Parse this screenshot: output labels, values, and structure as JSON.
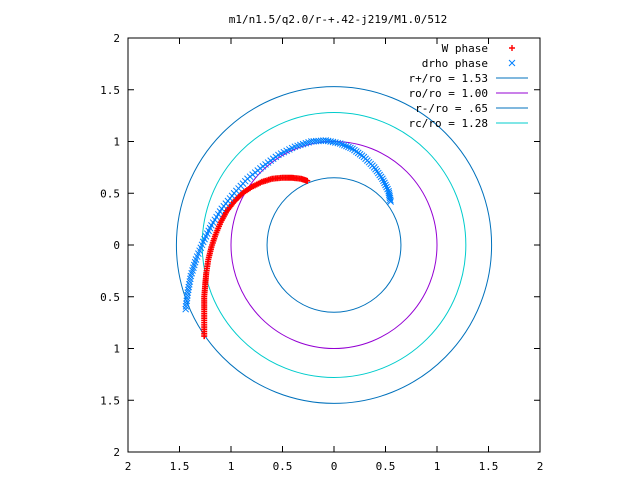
{
  "chart_data": {
    "type": "scatter",
    "title": "m1/n1.5/q2.0/r-+.42-j219/M1.0/512",
    "xlabel": "",
    "ylabel": "",
    "xlim": [
      -2,
      2
    ],
    "ylim": [
      -2,
      2
    ],
    "grid": false,
    "legend_position": "top-right",
    "x_ticks": [
      {
        "value": -2,
        "label": "2"
      },
      {
        "value": -1.5,
        "label": "1.5"
      },
      {
        "value": -1,
        "label": "1"
      },
      {
        "value": -0.5,
        "label": "0.5"
      },
      {
        "value": 0,
        "label": "0"
      },
      {
        "value": 0.5,
        "label": "0.5"
      },
      {
        "value": 1,
        "label": "1"
      },
      {
        "value": 1.5,
        "label": "1.5"
      },
      {
        "value": 2,
        "label": "2"
      }
    ],
    "y_ticks": [
      {
        "value": 2,
        "label": "2"
      },
      {
        "value": 1.5,
        "label": "1.5"
      },
      {
        "value": 1,
        "label": "1"
      },
      {
        "value": 0.5,
        "label": "0.5"
      },
      {
        "value": 0,
        "label": "0"
      },
      {
        "value": -0.5,
        "label": "0.5"
      },
      {
        "value": -1,
        "label": "1"
      },
      {
        "value": -1.5,
        "label": "1.5"
      },
      {
        "value": -2,
        "label": "2"
      }
    ],
    "series": [
      {
        "name": "W phase",
        "kind": "points",
        "marker": "+",
        "color": "#ff0000",
        "x": [
          -1.26,
          -1.26,
          -1.26,
          -1.26,
          -1.25,
          -1.24,
          -1.22,
          -1.19,
          -1.15,
          -1.1,
          -1.04,
          -0.97,
          -0.89,
          -0.8,
          -0.7,
          -0.6,
          -0.5,
          -0.41,
          -0.32,
          -0.26
        ],
        "y": [
          -0.88,
          -0.75,
          -0.62,
          -0.5,
          -0.38,
          -0.27,
          -0.14,
          -0.02,
          0.1,
          0.22,
          0.33,
          0.42,
          0.5,
          0.56,
          0.61,
          0.64,
          0.65,
          0.65,
          0.64,
          0.62
        ]
      },
      {
        "name": "drho phase",
        "kind": "points",
        "marker": "x",
        "color": "#0080ff",
        "x": [
          -1.44,
          -1.42,
          -1.39,
          -1.34,
          -1.27,
          -1.19,
          -1.09,
          -0.97,
          -0.84,
          -0.69,
          -0.54,
          -0.38,
          -0.22,
          -0.08,
          0.06,
          0.18,
          0.29,
          0.39,
          0.47,
          0.53,
          0.55
        ],
        "y": [
          -0.62,
          -0.46,
          -0.3,
          -0.14,
          0.03,
          0.19,
          0.35,
          0.5,
          0.64,
          0.76,
          0.87,
          0.95,
          1.0,
          1.01,
          0.98,
          0.93,
          0.85,
          0.75,
          0.64,
          0.52,
          0.42
        ]
      },
      {
        "name": "r+/ro = 1.53",
        "kind": "circle",
        "radius": 1.53,
        "color": "#0071bc"
      },
      {
        "name": "ro/ro = 1.00",
        "kind": "circle",
        "radius": 1.0,
        "color": "#9400d3"
      },
      {
        "name": "r-/ro = .65",
        "kind": "circle",
        "radius": 0.65,
        "color": "#0071bc"
      },
      {
        "name": "rc/ro = 1.28",
        "kind": "circle",
        "radius": 1.28,
        "color": "#00cccc"
      }
    ]
  }
}
